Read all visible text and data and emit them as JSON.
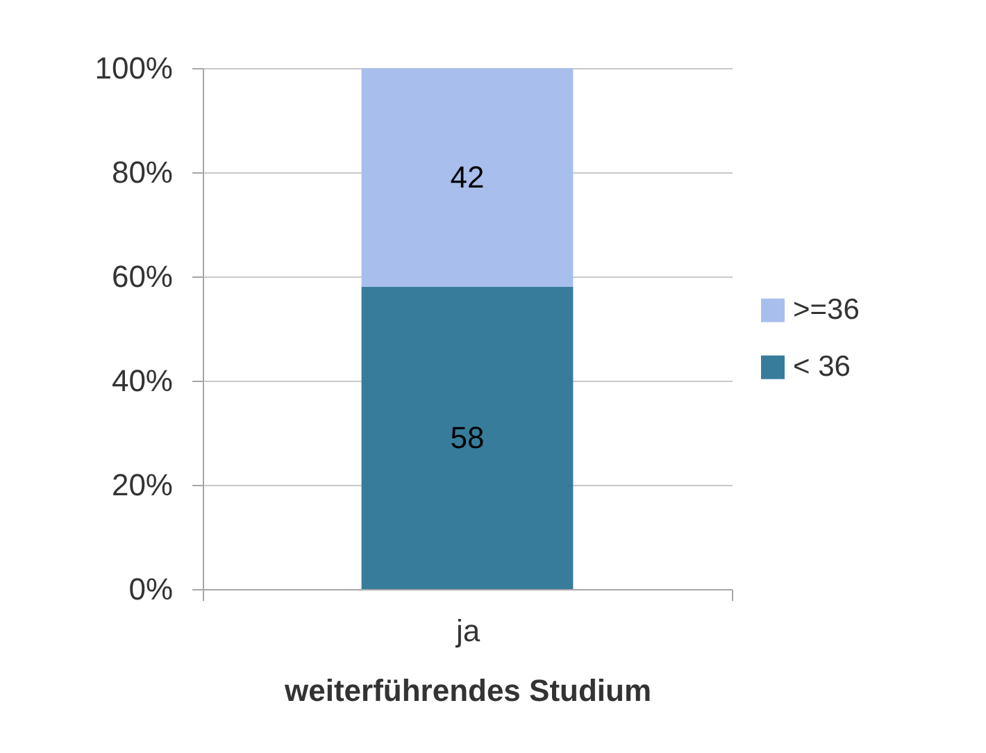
{
  "chart_data": {
    "type": "bar",
    "xlabel": "weiterführendes Studium",
    "categories": [
      "ja"
    ],
    "series": [
      {
        "name": "< 36",
        "color": "#377d9b",
        "values": [
          58
        ]
      },
      {
        "name": ">=36",
        "color": "#a8bfed",
        "values": [
          42
        ]
      }
    ],
    "stacked": true,
    "ylim": [
      0,
      100
    ],
    "yticks": [
      {
        "value": 0,
        "label": "0%"
      },
      {
        "value": 20,
        "label": "20%"
      },
      {
        "value": 40,
        "label": "40%"
      },
      {
        "value": 60,
        "label": "60%"
      },
      {
        "value": 80,
        "label": "80%"
      },
      {
        "value": 100,
        "label": "100%"
      }
    ],
    "grid": "y",
    "legend": "right",
    "data_labels": true
  }
}
